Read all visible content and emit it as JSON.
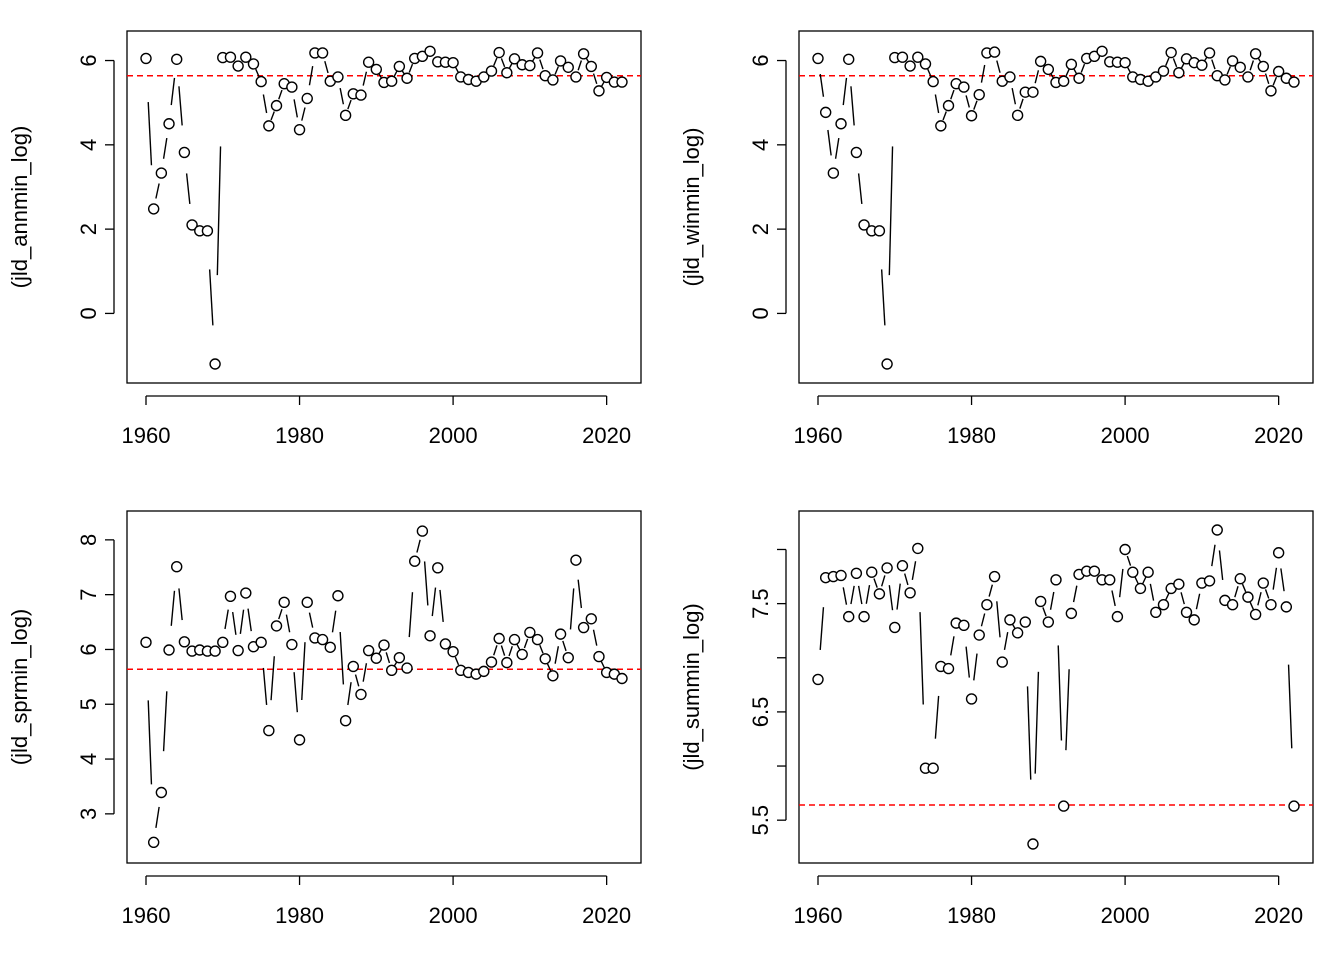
{
  "chart_data": [
    {
      "type": "line",
      "style": "b",
      "ylabel": "(jld_annmin_log)",
      "xlabel": "",
      "xlim": [
        1960,
        2022
      ],
      "ylim": [
        -1.2,
        6.25
      ],
      "xticks": [
        1960,
        1980,
        2000,
        2020
      ],
      "yticks": [
        0,
        2,
        4,
        6
      ],
      "ref_line": {
        "y": 5.64,
        "color": "#ff0000"
      },
      "x": [
        1960,
        1961,
        1962,
        1963,
        1964,
        1965,
        1966,
        1967,
        1968,
        1969,
        1970,
        1971,
        1972,
        1973,
        1974,
        1975,
        1976,
        1977,
        1978,
        1979,
        1980,
        1981,
        1982,
        1983,
        1984,
        1985,
        1986,
        1987,
        1988,
        1989,
        1990,
        1991,
        1992,
        1993,
        1994,
        1995,
        1996,
        1997,
        1998,
        1999,
        2000,
        2001,
        2002,
        2003,
        2004,
        2005,
        2006,
        2007,
        2008,
        2009,
        2010,
        2011,
        2012,
        2013,
        2014,
        2015,
        2016,
        2017,
        2018,
        2019,
        2020,
        2021,
        2022
      ],
      "y": [
        6.05,
        2.48,
        3.33,
        4.5,
        6.03,
        3.82,
        2.1,
        1.96,
        1.96,
        -1.2,
        6.07,
        6.08,
        5.87,
        6.08,
        5.92,
        5.5,
        4.45,
        4.93,
        5.45,
        5.37,
        4.36,
        5.1,
        6.18,
        6.18,
        5.51,
        5.61,
        4.7,
        5.21,
        5.18,
        5.96,
        5.79,
        5.48,
        5.51,
        5.86,
        5.58,
        6.05,
        6.1,
        6.22,
        5.97,
        5.96,
        5.95,
        5.61,
        5.55,
        5.51,
        5.61,
        5.75,
        6.19,
        5.71,
        6.04,
        5.9,
        5.88,
        6.18,
        5.64,
        5.54,
        5.99,
        5.84,
        5.61,
        6.16,
        5.86,
        5.28,
        5.6,
        5.49,
        5.49
      ]
    },
    {
      "type": "line",
      "style": "b",
      "ylabel": "(jld_winmin_log)",
      "xlabel": "",
      "xlim": [
        1960,
        2022
      ],
      "ylim": [
        -1.2,
        6.25
      ],
      "xticks": [
        1960,
        1980,
        2000,
        2020
      ],
      "yticks": [
        0,
        2,
        4,
        6
      ],
      "ref_line": {
        "y": 5.64,
        "color": "#ff0000"
      },
      "x": [
        1960,
        1961,
        1962,
        1963,
        1964,
        1965,
        1966,
        1967,
        1968,
        1969,
        1970,
        1971,
        1972,
        1973,
        1974,
        1975,
        1976,
        1977,
        1978,
        1979,
        1980,
        1981,
        1982,
        1983,
        1984,
        1985,
        1986,
        1987,
        1988,
        1989,
        1990,
        1991,
        1992,
        1993,
        1994,
        1995,
        1996,
        1997,
        1998,
        1999,
        2000,
        2001,
        2002,
        2003,
        2004,
        2005,
        2006,
        2007,
        2008,
        2009,
        2010,
        2011,
        2012,
        2013,
        2014,
        2015,
        2016,
        2017,
        2018,
        2019,
        2020,
        2021,
        2022
      ],
      "y": [
        6.05,
        4.77,
        3.33,
        4.5,
        6.03,
        3.82,
        2.1,
        1.96,
        1.96,
        -1.2,
        6.07,
        6.08,
        5.87,
        6.08,
        5.92,
        5.5,
        4.45,
        4.93,
        5.45,
        5.37,
        4.69,
        5.19,
        6.18,
        6.2,
        5.51,
        5.61,
        4.7,
        5.25,
        5.25,
        5.98,
        5.79,
        5.48,
        5.51,
        5.91,
        5.58,
        6.05,
        6.1,
        6.22,
        5.97,
        5.96,
        5.95,
        5.61,
        5.55,
        5.51,
        5.61,
        5.75,
        6.19,
        5.71,
        6.04,
        5.95,
        5.89,
        6.18,
        5.64,
        5.54,
        5.99,
        5.84,
        5.61,
        6.16,
        5.86,
        5.28,
        5.74,
        5.58,
        5.49
      ]
    },
    {
      "type": "line",
      "style": "b",
      "ylabel": "(jld_sprmin_log)",
      "xlabel": "",
      "xlim": [
        1960,
        2022
      ],
      "ylim": [
        2.45,
        8.18
      ],
      "xticks": [
        1960,
        1980,
        2000,
        2020
      ],
      "yticks": [
        3,
        4,
        5,
        6,
        7,
        8
      ],
      "ref_line": {
        "y": 5.64,
        "color": "#ff0000"
      },
      "x": [
        1960,
        1961,
        1962,
        1963,
        1964,
        1965,
        1966,
        1967,
        1968,
        1969,
        1970,
        1971,
        1972,
        1973,
        1974,
        1975,
        1976,
        1977,
        1978,
        1979,
        1980,
        1981,
        1982,
        1983,
        1984,
        1985,
        1986,
        1987,
        1988,
        1989,
        1990,
        1991,
        1992,
        1993,
        1994,
        1995,
        1996,
        1997,
        1998,
        1999,
        2000,
        2001,
        2002,
        2003,
        2004,
        2005,
        2006,
        2007,
        2008,
        2009,
        2010,
        2011,
        2012,
        2013,
        2014,
        2015,
        2016,
        2017,
        2018,
        2019,
        2020,
        2021,
        2022
      ],
      "y": [
        6.13,
        2.48,
        3.39,
        5.99,
        7.51,
        6.14,
        5.97,
        5.99,
        5.97,
        5.97,
        6.13,
        6.97,
        5.98,
        7.03,
        6.05,
        6.13,
        4.52,
        6.43,
        6.86,
        6.09,
        4.35,
        6.86,
        6.21,
        6.18,
        6.04,
        6.98,
        4.7,
        5.69,
        5.18,
        5.98,
        5.84,
        6.08,
        5.62,
        5.85,
        5.66,
        7.61,
        8.16,
        6.25,
        7.49,
        6.1,
        5.96,
        5.62,
        5.58,
        5.55,
        5.6,
        5.77,
        6.2,
        5.76,
        6.18,
        5.91,
        6.31,
        6.18,
        5.83,
        5.52,
        6.28,
        5.85,
        7.63,
        6.4,
        6.56,
        5.87,
        5.58,
        5.55,
        5.47
      ]
    },
    {
      "type": "line",
      "style": "b",
      "ylabel": "(jld_summin_log)",
      "xlabel": "",
      "xlim": [
        1960,
        2022
      ],
      "ylim": [
        5.28,
        8.18
      ],
      "xticks": [
        1960,
        1980,
        2000,
        2020
      ],
      "yticks": [
        5.5,
        6.5,
        7.5
      ],
      "yticks_unlabeled": [
        6.0,
        7.0,
        8.0
      ],
      "ref_line": {
        "y": 5.64,
        "color": "#ff0000"
      },
      "x": [
        1960,
        1961,
        1962,
        1963,
        1964,
        1965,
        1966,
        1967,
        1968,
        1969,
        1970,
        1971,
        1972,
        1973,
        1974,
        1975,
        1976,
        1977,
        1978,
        1979,
        1980,
        1981,
        1982,
        1983,
        1984,
        1985,
        1986,
        1987,
        1988,
        1989,
        1990,
        1991,
        1992,
        1993,
        1994,
        1995,
        1996,
        1997,
        1998,
        1999,
        2000,
        2001,
        2002,
        2003,
        2004,
        2005,
        2006,
        2007,
        2008,
        2009,
        2010,
        2011,
        2012,
        2013,
        2014,
        2015,
        2016,
        2017,
        2018,
        2019,
        2020,
        2021,
        2022
      ],
      "y": [
        6.8,
        7.74,
        7.75,
        7.76,
        7.38,
        7.78,
        7.38,
        7.79,
        7.59,
        7.83,
        7.28,
        7.85,
        7.6,
        8.01,
        5.98,
        5.98,
        6.92,
        6.9,
        7.32,
        7.3,
        6.62,
        7.21,
        7.49,
        7.75,
        6.96,
        7.35,
        7.23,
        7.33,
        5.28,
        7.52,
        7.33,
        7.72,
        5.63,
        7.41,
        7.77,
        7.8,
        7.8,
        7.72,
        7.72,
        7.38,
        8.0,
        7.79,
        7.64,
        7.79,
        7.42,
        7.49,
        7.64,
        7.68,
        7.42,
        7.35,
        7.69,
        7.71,
        8.18,
        7.53,
        7.49,
        7.73,
        7.56,
        7.4,
        7.69,
        7.49,
        7.97,
        7.47,
        5.63
      ]
    }
  ]
}
